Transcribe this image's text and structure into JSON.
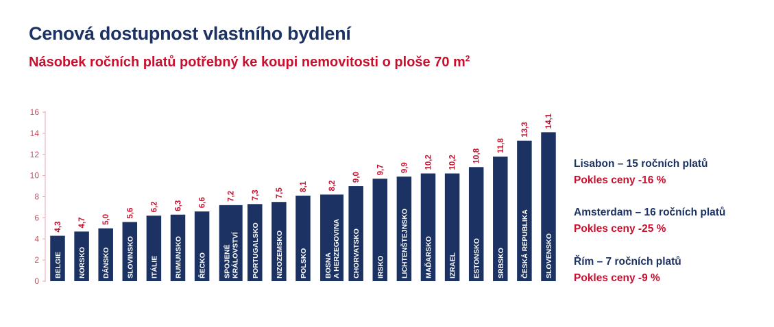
{
  "title": "Cenová dostupnost vlastního bydlení",
  "subtitle_text": "Násobek ročních platů potřebný ke koupi nemovitosti o ploše 70 m",
  "subtitle_sup": "2",
  "colors": {
    "bar": "#1b3263",
    "accent_red": "#c8102e",
    "axis_tick": "#d04a5a"
  },
  "notes": [
    {
      "city": "Lisabon – 15 ročních platů",
      "drop": "Pokles ceny -16 %"
    },
    {
      "city": "Amsterdam – 16 ročních platů",
      "drop": "Pokles ceny -25 %"
    },
    {
      "city": "Řím – 7 ročních platů",
      "drop": "Pokles ceny -9 %"
    }
  ],
  "chart_data": {
    "type": "bar",
    "categories": [
      [
        "BELGIE"
      ],
      [
        "NORSKO"
      ],
      [
        "DÁNSKO"
      ],
      [
        "SLOVINSKO"
      ],
      [
        "ITÁLIE"
      ],
      [
        "RUMUNSKO"
      ],
      [
        "ŘECKO"
      ],
      [
        "SPOJENÉ",
        "KRÁLOVSTVÍ"
      ],
      [
        "PORTUGALSKO"
      ],
      [
        "NIZOZEMSKO"
      ],
      [
        "POLSKO"
      ],
      [
        "BOSNA",
        "A HERZEGOVINA"
      ],
      [
        "CHORVATSKO"
      ],
      [
        "IRSKO"
      ],
      [
        "LICHTENŠTEJNSKO"
      ],
      [
        "MAĎARSKO"
      ],
      [
        "IZRAEL"
      ],
      [
        "ESTONSKO"
      ],
      [
        "SRBSKO"
      ],
      [
        "ČESKÁ REPUBLIKA"
      ],
      [
        "SLOVENSKO"
      ]
    ],
    "values": [
      4.3,
      4.7,
      5.0,
      5.6,
      6.2,
      6.3,
      6.6,
      7.2,
      7.3,
      7.5,
      8.1,
      8.2,
      9.0,
      9.7,
      9.9,
      10.2,
      10.2,
      10.8,
      11.8,
      13.3,
      14.1
    ],
    "value_labels": [
      "4,3",
      "4,7",
      "5,0",
      "5,6",
      "6,2",
      "6,3",
      "6,6",
      "7,2",
      "7,3",
      "7,5",
      "8,1",
      "8,2",
      "9,0",
      "9,7",
      "9,9",
      "10,2",
      "10,2",
      "10,8",
      "11,8",
      "13,3",
      "14,1"
    ],
    "yticks": [
      "0",
      "2",
      "4",
      "6",
      "8",
      "10",
      "12",
      "14",
      "16"
    ],
    "ylim": [
      0,
      16
    ],
    "grid": false,
    "legend": false
  }
}
